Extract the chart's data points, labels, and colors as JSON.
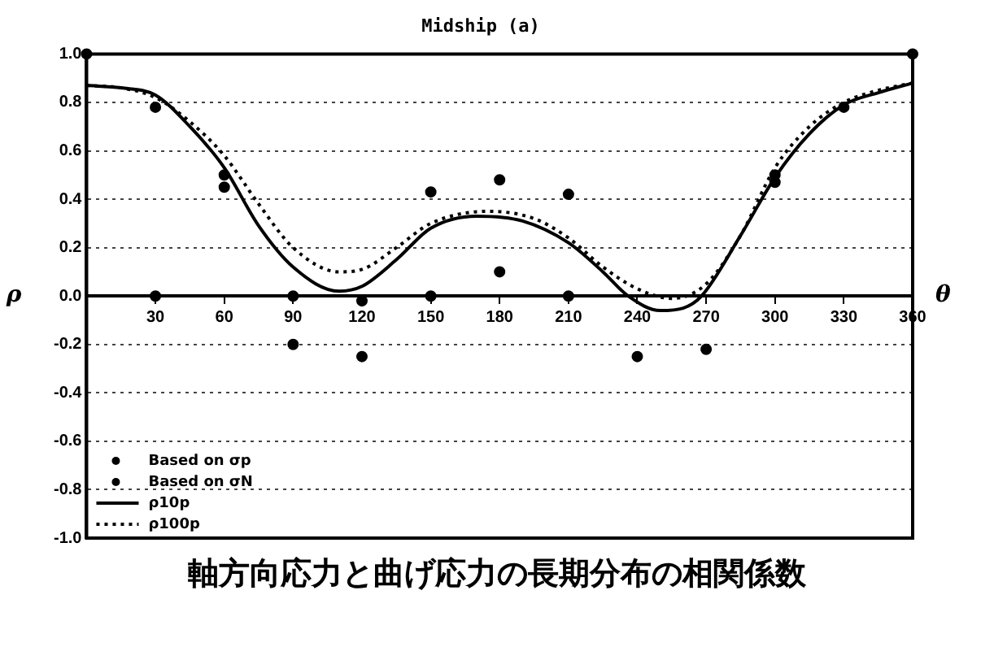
{
  "chart_data": {
    "type": "line",
    "title": "Midship (a)",
    "xlabel": "θ",
    "ylabel": "ρ",
    "annotations": [
      "軸方向応力と曲げ応力の長期分布の相関係数"
    ],
    "xlim": [
      0,
      360
    ],
    "xticks": [
      {
        "value": 0,
        "label": null
      },
      30,
      60,
      90,
      120,
      150,
      180,
      210,
      240,
      270,
      300,
      330,
      360
    ],
    "ylim": [
      -1,
      1
    ],
    "yticks": [
      {
        "value": -1,
        "label": "-1.0"
      },
      {
        "value": -0.8,
        "label": "-0.8"
      },
      {
        "value": -0.6,
        "label": "-0.6"
      },
      {
        "value": -0.4,
        "label": "-0.4"
      },
      {
        "value": -0.2,
        "label": "-0.2"
      },
      {
        "value": 0,
        "label": "0.0"
      },
      {
        "value": 0.2,
        "label": "0.2"
      },
      {
        "value": 0.4,
        "label": "0.4"
      },
      {
        "value": 0.6,
        "label": "0.6"
      },
      {
        "value": 0.8,
        "label": "0.8"
      },
      {
        "value": 1,
        "label": "1.0"
      }
    ],
    "grid": "y",
    "legend": "bottom left",
    "series": [
      {
        "name": "Based on σp",
        "type": "scatter",
        "marker": "circle",
        "color": "#000000",
        "x": [
          0,
          30,
          60,
          90,
          120,
          150,
          180,
          210,
          240,
          270,
          300,
          330,
          360
        ],
        "values": [
          1.0,
          0.78,
          0.5,
          -0.2,
          -0.25,
          0.43,
          0.48,
          0.42,
          -0.25,
          -0.22,
          0.5,
          0.78,
          1.0
        ]
      },
      {
        "name": "Based on σN",
        "type": "scatter",
        "marker": "circle",
        "color": "#000000",
        "x": [
          30,
          60,
          90,
          120,
          150,
          180,
          210,
          300
        ],
        "values": [
          0,
          0.45,
          0,
          -0.02,
          0,
          0.1,
          0,
          0.47
        ]
      },
      {
        "name": "ρ10p",
        "type": "line",
        "line_style": "solid",
        "marker": "none",
        "color": "#000000",
        "x": [
          0,
          15,
          30,
          45,
          60,
          75,
          90,
          110,
          120,
          135,
          150,
          170,
          190,
          210,
          225,
          236,
          250,
          260,
          268,
          285,
          300,
          315,
          330,
          345,
          360
        ],
        "values": [
          0.87,
          0.86,
          0.83,
          0.7,
          0.53,
          0.29,
          0.12,
          0.02,
          0.04,
          0.15,
          0.28,
          0.33,
          0.31,
          0.22,
          0.1,
          0.0,
          -0.06,
          -0.05,
          0.0,
          0.25,
          0.49,
          0.67,
          0.79,
          0.84,
          0.88
        ]
      },
      {
        "name": "ρ100p",
        "type": "line",
        "line_style": "dotted",
        "marker": "none",
        "color": "#000000",
        "x": [
          0,
          15,
          30,
          45,
          60,
          75,
          90,
          110,
          120,
          135,
          150,
          175,
          195,
          210,
          225,
          240,
          255,
          270,
          285,
          300,
          315,
          330,
          345,
          360
        ],
        "values": [
          0.87,
          0.86,
          0.82,
          0.72,
          0.58,
          0.38,
          0.2,
          0.1,
          0.11,
          0.2,
          0.3,
          0.35,
          0.32,
          0.24,
          0.12,
          0.03,
          -0.01,
          0.05,
          0.25,
          0.53,
          0.7,
          0.8,
          0.85,
          0.88
        ]
      }
    ]
  }
}
